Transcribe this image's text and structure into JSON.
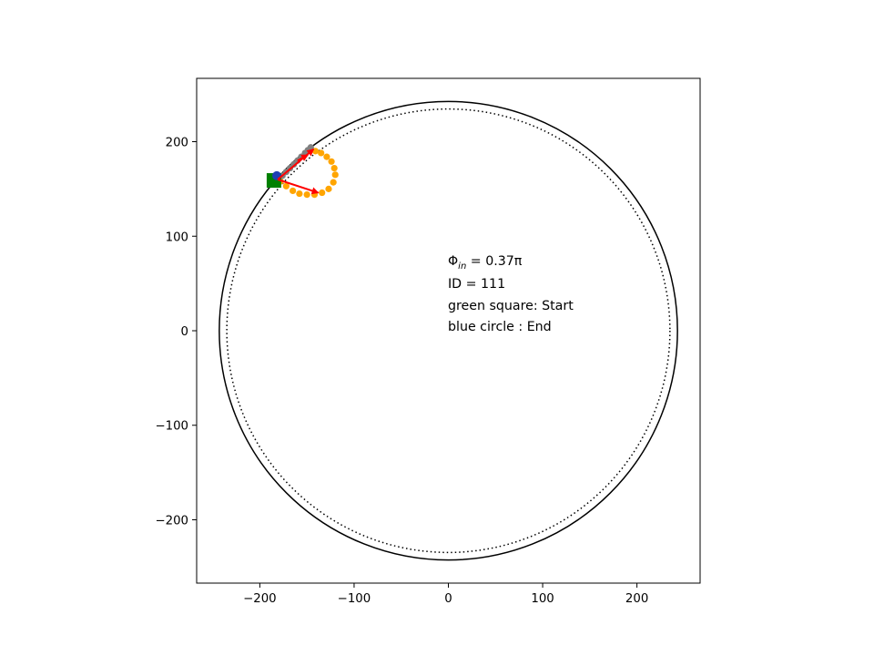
{
  "chart_data": {
    "type": "scatter",
    "title": "",
    "xlabel": "",
    "ylabel": "",
    "xlim": [
      -267,
      267
    ],
    "ylim": [
      -267,
      267
    ],
    "xticks": [
      -200,
      -100,
      0,
      100,
      200
    ],
    "yticks": [
      -200,
      -100,
      0,
      100,
      200
    ],
    "xtick_labels": [
      "−200",
      "−100",
      "0",
      "100",
      "200"
    ],
    "ytick_labels": [
      "−200",
      "−100",
      "0",
      "100",
      "200"
    ],
    "grid": false,
    "outer_circle": {
      "cx": 0,
      "cy": 0,
      "r": 243,
      "color": "#000000",
      "style": "solid"
    },
    "inner_circle": {
      "cx": 0,
      "cy": 0,
      "r": 235,
      "color": "#000000",
      "style": "dotted"
    },
    "annotation": {
      "phi_symbol": "Φ",
      "phi_subscript": "in",
      "phi_value": " = 0.37π",
      "line2": "ID = 111",
      "line3": "green square: Start",
      "line4": "blue circle : End"
    },
    "series": [
      {
        "color": "#ffa500",
        "marker": "circle",
        "x": [
          -178,
          -172,
          -165,
          -158,
          -150,
          -142,
          -134,
          -127,
          -122,
          -120,
          -121,
          -124,
          -129,
          -135,
          -141,
          -146
        ],
        "y": [
          158,
          153,
          148,
          145,
          144,
          144,
          146,
          150,
          157,
          165,
          172,
          179,
          184,
          188,
          190,
          192
        ]
      },
      {
        "color": "#808080",
        "marker": "circle",
        "x": [
          -184,
          -180,
          -176,
          -172,
          -168,
          -164,
          -160,
          -156,
          -152,
          -149,
          -146
        ],
        "y": [
          158,
          161,
          164,
          168,
          172,
          176,
          180,
          184,
          188,
          191,
          194
        ]
      }
    ],
    "start": {
      "x": -185,
      "y": 159,
      "color": "#008000",
      "marker": "square"
    },
    "end": {
      "x": -182,
      "y": 164,
      "color": "#1f3fb4",
      "marker": "circle"
    },
    "arrows": [
      {
        "x0": -181,
        "y0": 160,
        "x1": -138,
        "y1": 146,
        "color": "#ff0000"
      },
      {
        "x0": -181,
        "y0": 160,
        "x1": -143,
        "y1": 192,
        "color": "#ff0000"
      },
      {
        "x0": -160,
        "y0": 180,
        "x1": -149,
        "y1": 186,
        "color": "#ff0000"
      }
    ]
  }
}
